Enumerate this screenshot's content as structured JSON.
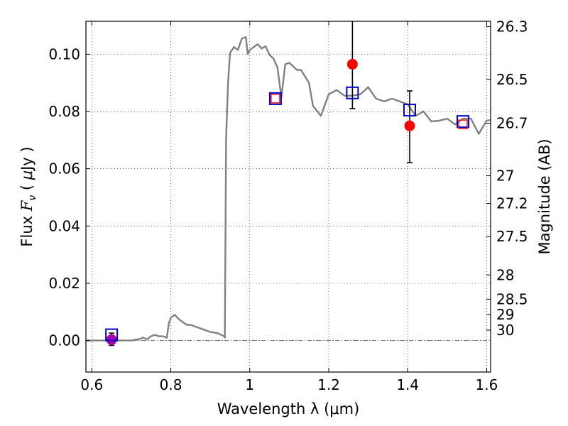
{
  "chart_data": {
    "type": "line",
    "xlabel": "Wavelength  λ (μm)",
    "ylabel_parts": [
      "Flux ",
      "F",
      "ν",
      " ( ",
      "μ",
      "Jy )"
    ],
    "y2label": "Magnitude (AB)",
    "xlim": [
      0.585,
      1.61
    ],
    "ylim": [
      -0.011,
      0.1115
    ],
    "grid": true,
    "x_ticks": [
      0.6,
      0.8,
      1.0,
      1.2,
      1.4,
      1.6
    ],
    "x_tick_labels": [
      "0.6",
      "0.8",
      "1",
      "1.2",
      "1.4",
      "1.6"
    ],
    "y_ticks": [
      0.0,
      0.02,
      0.04,
      0.06,
      0.08,
      0.1
    ],
    "y_tick_labels": [
      "0.00",
      "0.02",
      "0.04",
      "0.06",
      "0.08",
      "0.10"
    ],
    "mag_ticks": [
      26.3,
      26.5,
      26.7,
      27,
      27.2,
      27.5,
      28,
      28.5,
      29,
      30
    ],
    "mag_tick_labels": [
      "26.3",
      "26.5",
      "26.7",
      "27",
      "27.2",
      "27.5",
      "28",
      "28.5",
      "29",
      "30"
    ],
    "zero_line": 0.0,
    "colors": {
      "model": "#808080",
      "observed": "#ff0000",
      "model_photometry": "#0000cc",
      "model_photometry_inner": "#ff0000",
      "errorbar": "#000000",
      "optical_point": "#aa00aa",
      "zero_line": "#666666"
    },
    "series": [
      {
        "name": "model_sed",
        "type": "line",
        "x": [
          0.58,
          0.6,
          0.65,
          0.7,
          0.72,
          0.73,
          0.74,
          0.75,
          0.76,
          0.77,
          0.78,
          0.79,
          0.795,
          0.8,
          0.81,
          0.82,
          0.83,
          0.84,
          0.85,
          0.86,
          0.88,
          0.9,
          0.92,
          0.935,
          0.937,
          0.94,
          0.945,
          0.95,
          0.96,
          0.97,
          0.98,
          0.99,
          0.995,
          1.0,
          1.02,
          1.03,
          1.04,
          1.05,
          1.06,
          1.07,
          1.08,
          1.09,
          1.1,
          1.12,
          1.13,
          1.15,
          1.16,
          1.18,
          1.2,
          1.22,
          1.24,
          1.26,
          1.28,
          1.3,
          1.32,
          1.34,
          1.36,
          1.38,
          1.4,
          1.42,
          1.44,
          1.46,
          1.48,
          1.5,
          1.52,
          1.54,
          1.56,
          1.58,
          1.6,
          1.61
        ],
        "y": [
          0.0,
          0.0,
          0.0,
          0.0,
          0.0005,
          0.001,
          0.0005,
          0.0015,
          0.002,
          0.0015,
          0.0015,
          0.001,
          0.006,
          0.008,
          0.009,
          0.0075,
          0.0065,
          0.0055,
          0.0055,
          0.005,
          0.004,
          0.003,
          0.0025,
          0.0015,
          0.001,
          0.07,
          0.09,
          0.1005,
          0.1025,
          0.1015,
          0.1055,
          0.106,
          0.1,
          0.1015,
          0.1035,
          0.102,
          0.1028,
          0.0998,
          0.0985,
          0.0955,
          0.085,
          0.0965,
          0.097,
          0.0945,
          0.0945,
          0.09,
          0.082,
          0.0785,
          0.086,
          0.0875,
          0.0855,
          0.0855,
          0.086,
          0.0885,
          0.0845,
          0.0835,
          0.0845,
          0.0835,
          0.0825,
          0.0785,
          0.08,
          0.0765,
          0.0768,
          0.0775,
          0.0755,
          0.0775,
          0.0775,
          0.0722,
          0.0768,
          0.077
        ]
      },
      {
        "name": "model_photometry",
        "type": "scatter",
        "marker": "open-square",
        "x": [
          0.65,
          1.065,
          1.26,
          1.405,
          1.54
        ],
        "y": [
          0.002,
          0.0845,
          0.0865,
          0.0805,
          0.0765
        ]
      },
      {
        "name": "model_photometry_inner",
        "type": "scatter",
        "marker": "open-square-small",
        "x": [
          1.065,
          1.54
        ],
        "y": [
          0.0845,
          0.0755
        ]
      },
      {
        "name": "observed",
        "type": "scatter",
        "marker": "circle",
        "x": [
          0.65,
          1.26,
          1.405
        ],
        "y": [
          0.0003,
          0.0965,
          0.075
        ],
        "yerr_low": [
          0.002,
          0.0155,
          0.0128
        ],
        "yerr_high": [
          0.0023,
          0.0155,
          0.0122
        ]
      }
    ]
  }
}
